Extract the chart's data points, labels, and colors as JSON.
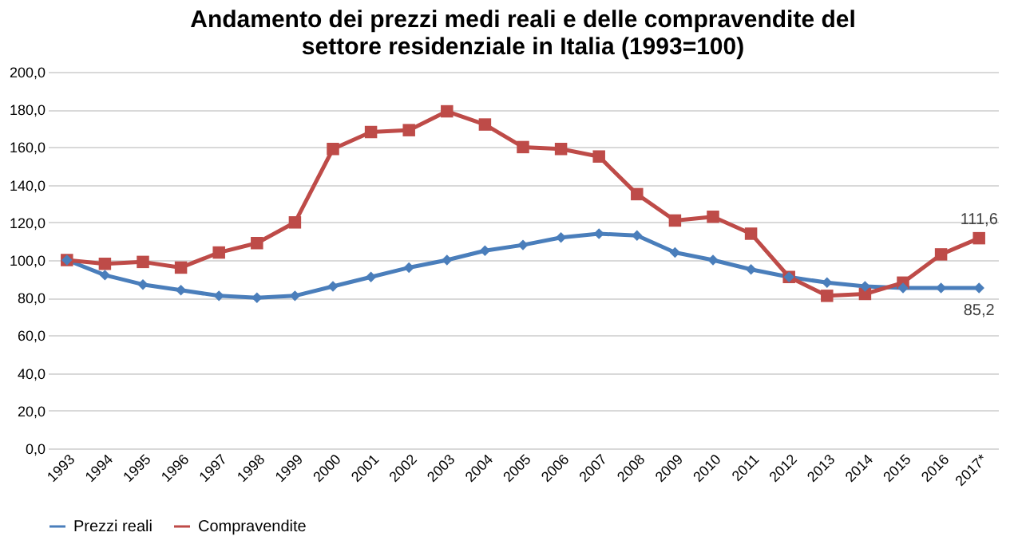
{
  "chart_data": {
    "type": "line",
    "title": "Andamento dei prezzi medi reali e delle compravendite del settore residenziale in Italia (1993=100)",
    "categories": [
      "1993",
      "1994",
      "1995",
      "1996",
      "1997",
      "1998",
      "1999",
      "2000",
      "2001",
      "2002",
      "2003",
      "2004",
      "2005",
      "2006",
      "2007",
      "2008",
      "2009",
      "2010",
      "2011",
      "2012",
      "2013",
      "2014",
      "2015",
      "2016",
      "2017*"
    ],
    "series": [
      {
        "name": "Prezzi reali",
        "color": "#4a7ebb",
        "marker": "diamond",
        "values": [
          100,
          92,
          87,
          84,
          81,
          80,
          81,
          86,
          91,
          96,
          100,
          105,
          108,
          112,
          114,
          113,
          104,
          100,
          95,
          91,
          88,
          86,
          85.2,
          85.2,
          85.2
        ],
        "value_labels": [
          null,
          null,
          null,
          null,
          null,
          null,
          null,
          null,
          null,
          null,
          null,
          null,
          null,
          null,
          null,
          null,
          null,
          null,
          null,
          null,
          null,
          null,
          null,
          null,
          "85,2"
        ]
      },
      {
        "name": "Compravendite",
        "color": "#be4b48",
        "marker": "square",
        "values": [
          100,
          98,
          99,
          96,
          104,
          109,
          120,
          159,
          168,
          169,
          179,
          172,
          160,
          159,
          155,
          135,
          121,
          123,
          114,
          91,
          81,
          82,
          88,
          103,
          111.6
        ],
        "value_labels": [
          null,
          null,
          null,
          null,
          null,
          null,
          null,
          null,
          null,
          null,
          null,
          null,
          null,
          null,
          null,
          null,
          null,
          null,
          null,
          null,
          null,
          null,
          null,
          null,
          "111,6"
        ]
      }
    ],
    "ylim": [
      0,
      200
    ],
    "yticks": [
      {
        "value": 0,
        "label": "0,0"
      },
      {
        "value": 20,
        "label": "20,0"
      },
      {
        "value": 40,
        "label": "40,0"
      },
      {
        "value": 60,
        "label": "60,0"
      },
      {
        "value": 80,
        "label": "80,0"
      },
      {
        "value": 100,
        "label": "100,0"
      },
      {
        "value": 120,
        "label": "120,0"
      },
      {
        "value": 140,
        "label": "140,0"
      },
      {
        "value": 160,
        "label": "160,0"
      },
      {
        "value": 180,
        "label": "180,0"
      },
      {
        "value": 200,
        "label": "200,0"
      }
    ],
    "grid": "y",
    "legend": "bottom",
    "line_style": "solid"
  }
}
